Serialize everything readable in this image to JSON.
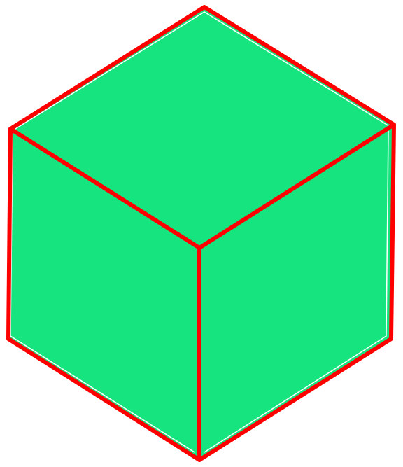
{
  "figure": {
    "shape": "isometric-cube",
    "colors": {
      "background": "#ffffff",
      "face_fill": "#16e47f",
      "edge_stroke": "#ff0000",
      "inner_highlight": "#ffffff"
    }
  }
}
